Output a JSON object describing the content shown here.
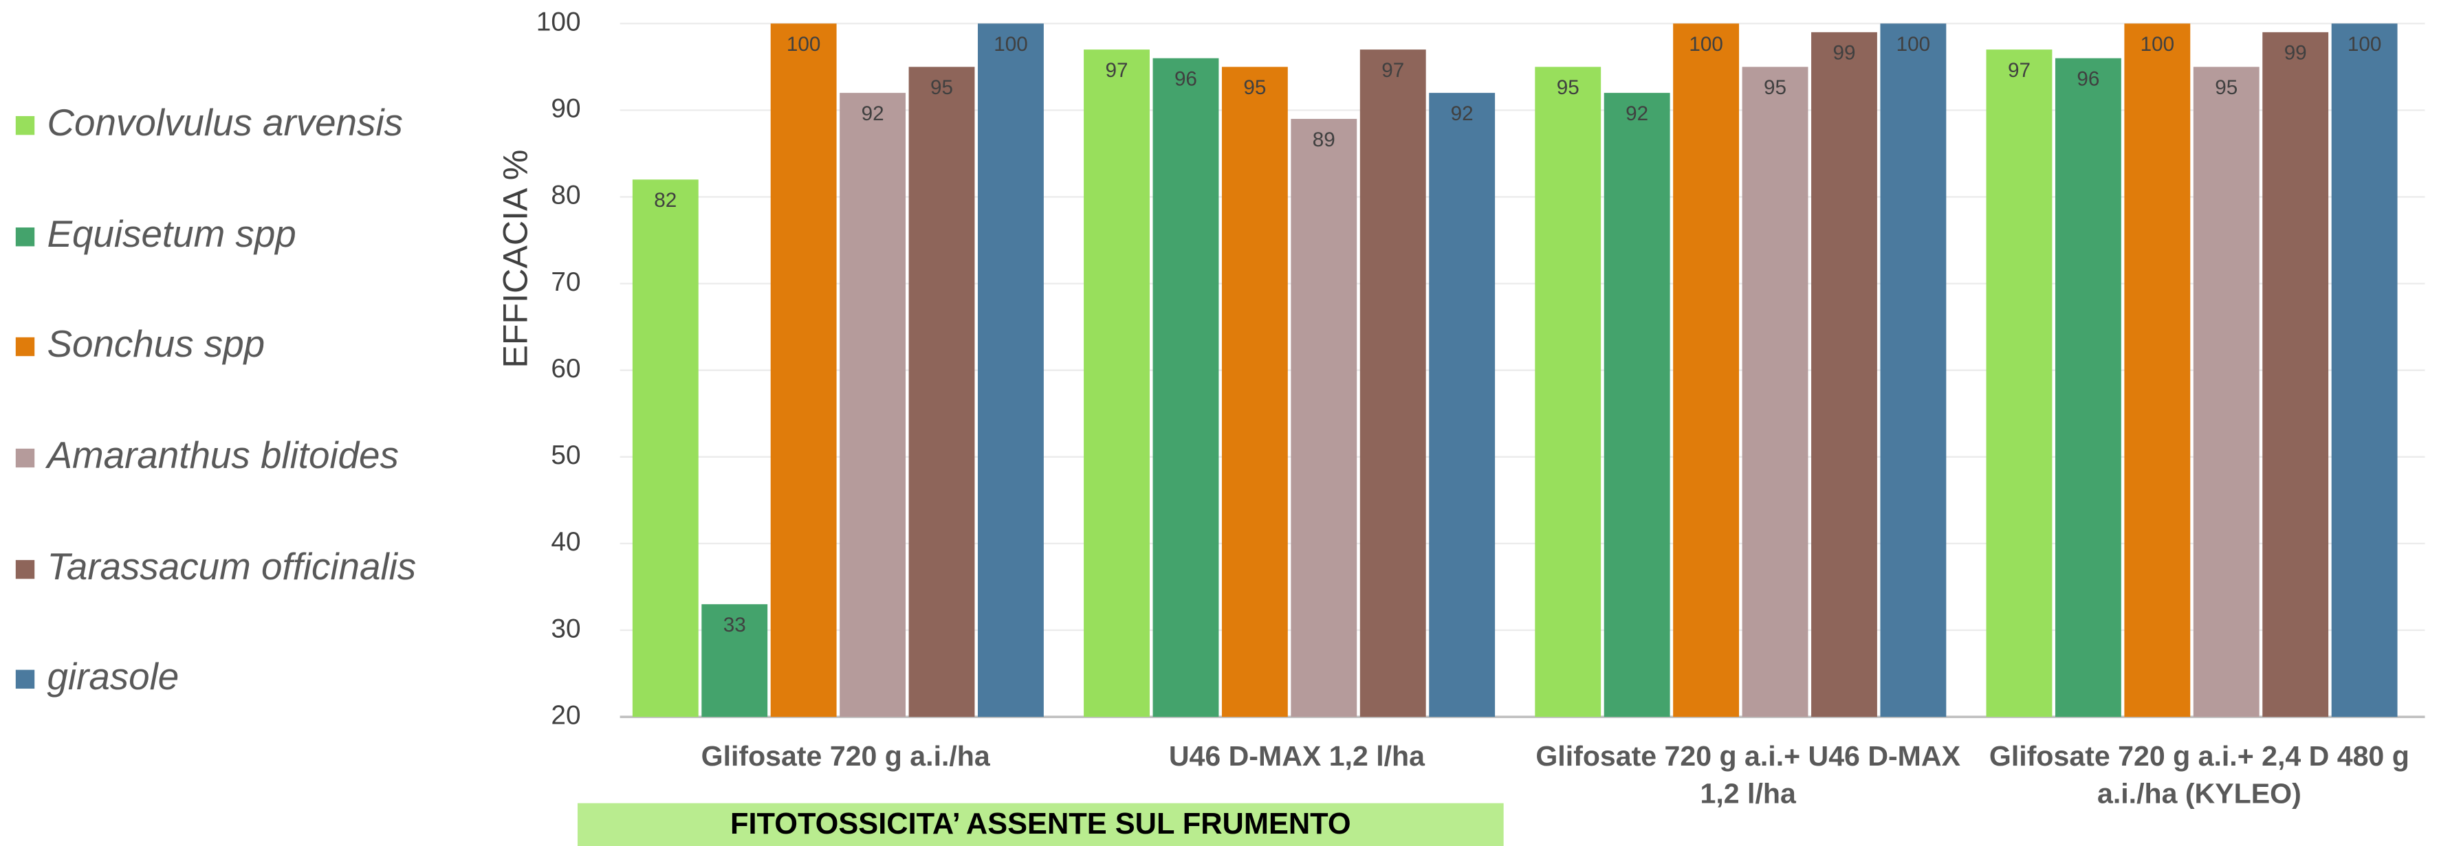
{
  "chart_data": {
    "type": "bar",
    "ylabel": "EFFICACIA %",
    "categories": [
      "Glifosate 720 g a.i./ha",
      "U46 D-MAX  1,2 l/ha",
      "Glifosate 720 g a.i.+ U46 D-MAX 1,2 l/ha",
      "Glifosate 720 g a.i.+ 2,4 D 480 g a.i./ha (KYLEO)"
    ],
    "series": [
      {
        "name": "Convolvulus arvensis",
        "color": "#98df5c",
        "values": [
          82,
          97,
          95,
          97
        ]
      },
      {
        "name": "Equisetum spp",
        "color": "#44a36c",
        "values": [
          33,
          96,
          92,
          96
        ]
      },
      {
        "name": "Sonchus spp",
        "color": "#e07c0b",
        "values": [
          100,
          95,
          100,
          100
        ]
      },
      {
        "name": "Amaranthus blitoides",
        "color": "#b59b9b",
        "values": [
          92,
          89,
          95,
          95
        ]
      },
      {
        "name": "Tarassacum officinalis",
        "color": "#8e655a",
        "values": [
          95,
          97,
          99,
          99
        ]
      },
      {
        "name": "girasole",
        "color": "#4b7a9e",
        "values": [
          100,
          92,
          100,
          100
        ]
      }
    ],
    "ylim": [
      20,
      100
    ],
    "yticks": [
      20,
      30,
      40,
      50,
      60,
      70,
      80,
      90,
      100
    ],
    "grid": true,
    "legend": "left",
    "annotation": "FITOTOSSICITA’ ASSENTE SUL FRUMENTO"
  }
}
